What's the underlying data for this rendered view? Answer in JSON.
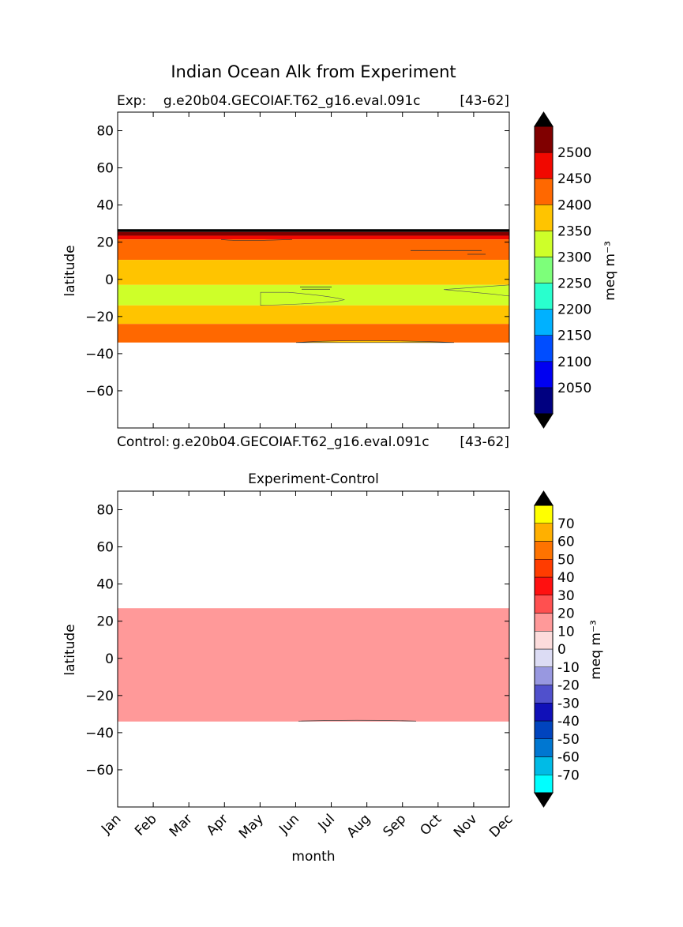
{
  "figure": {
    "suptitle": "Indian Ocean Alk from Experiment"
  },
  "chart_data": [
    {
      "type": "heatmap",
      "title_left": "Exp:    g.e20b04.GECOIAF.T62_g16.eval.091c",
      "title_right": "[43-62]",
      "ylabel": "latitude",
      "ylim": [
        -80,
        90
      ],
      "yticks": [
        "80",
        "60",
        "40",
        "20",
        "0",
        "−20",
        "−40",
        "−60"
      ],
      "xlim": [
        0,
        11
      ],
      "colorbar": {
        "label": "meq m⁻³",
        "ticks": [
          "2500",
          "2450",
          "2400",
          "2350",
          "2300",
          "2250",
          "2200",
          "2150",
          "2100",
          "2050"
        ],
        "colors": [
          "#000080",
          "#0000f1",
          "#004dff",
          "#00b1ff",
          "#29ffce",
          "#7dff7a",
          "#ceff29",
          "#ffc400",
          "#ff6800",
          "#f10800",
          "#800000"
        ],
        "extend": "both"
      },
      "bands": [
        {
          "color": "#000000",
          "lat": [
            25.5,
            27
          ]
        },
        {
          "color": "#800000",
          "lat": [
            23.5,
            25.5
          ]
        },
        {
          "color": "#f10800",
          "lat": [
            21.5,
            23.5
          ]
        },
        {
          "color": "#ff6800",
          "lat": [
            10.5,
            21.5
          ]
        },
        {
          "color": "#ffc400",
          "lat": [
            -3,
            10.5
          ]
        },
        {
          "color": "#ceff29",
          "lat": [
            -14,
            -3
          ]
        },
        {
          "color": "#ffc400",
          "lat": [
            -24,
            -14
          ]
        },
        {
          "color": "#ff6800",
          "lat": [
            -34,
            -24
          ]
        }
      ]
    },
    {
      "type": "heatmap",
      "subtitle_left": "Control:",
      "subtitle_mid": "g.e20b04.GECOIAF.T62_g16.eval.091c",
      "subtitle_right": "[43-62]",
      "title": "Experiment-Control",
      "ylabel": "latitude",
      "xlabel": "month",
      "ylim": [
        -80,
        90
      ],
      "yticks": [
        "80",
        "60",
        "40",
        "20",
        "0",
        "−20",
        "−40",
        "−60"
      ],
      "xticks": [
        "Jan",
        "Feb",
        "Mar",
        "Apr",
        "May",
        "Jun",
        "Jul",
        "Aug",
        "Sep",
        "Oct",
        "Nov",
        "Dec"
      ],
      "colorbar": {
        "label": "meq m⁻³",
        "ticks": [
          "70",
          "60",
          "50",
          "40",
          "30",
          "20",
          "10",
          "0",
          "-10",
          "-20",
          "-30",
          "-40",
          "-50",
          "-60",
          "-70"
        ],
        "colors": [
          "#00ffff",
          "#00bbe6",
          "#0077d1",
          "#0044be",
          "#1010b8",
          "#5050cc",
          "#9898e0",
          "#dcdcf4",
          "#fcdcdc",
          "#ff9999",
          "#ff5050",
          "#ff1010",
          "#ff3c00",
          "#ff7300",
          "#ffb000",
          "#ffff00"
        ],
        "extend": "both"
      },
      "region": {
        "color": "#ff9999",
        "lat": [
          -34,
          27
        ],
        "value_range": "10 to 20"
      }
    }
  ]
}
